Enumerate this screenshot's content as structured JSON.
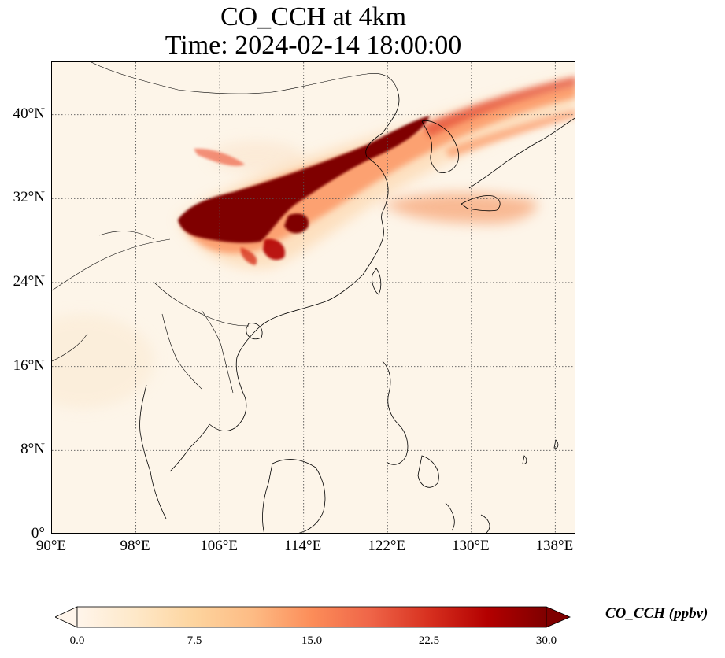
{
  "title": "CO_CCH at 4km",
  "subtitle": "Time: 2024-02-14 18:00:00",
  "map": {
    "projection": "PlateCarree",
    "lon_range": [
      90,
      140
    ],
    "lat_range": [
      0,
      45
    ],
    "gridlines": "dotted",
    "lon_ticks": [
      {
        "value": 90,
        "label": "90°E"
      },
      {
        "value": 98,
        "label": "98°E"
      },
      {
        "value": 106,
        "label": "106°E"
      },
      {
        "value": 114,
        "label": "114°E"
      },
      {
        "value": 122,
        "label": "122°E"
      },
      {
        "value": 130,
        "label": "130°E"
      },
      {
        "value": 138,
        "label": "138°E"
      }
    ],
    "lat_ticks": [
      {
        "value": 0,
        "label": "0°"
      },
      {
        "value": 8,
        "label": "8°N"
      },
      {
        "value": 16,
        "label": "16°N"
      },
      {
        "value": 24,
        "label": "24°N"
      },
      {
        "value": 32,
        "label": "32°N"
      },
      {
        "value": 40,
        "label": "40°N"
      }
    ],
    "field": "CO_CCH",
    "plume_description_colors": {
      "low": "#fff5eb",
      "high": "#7f0000"
    }
  },
  "colorbar": {
    "label": "CO_CCH (ppbv)",
    "min": 0.0,
    "max": 30.0,
    "extend": "both",
    "colormap": "OrRd",
    "stops": [
      "#fff5eb",
      "#fee8c8",
      "#fdd49e",
      "#fdbb84",
      "#fc8d59",
      "#ef6548",
      "#d7301f",
      "#b30000",
      "#7f0000"
    ],
    "ticks": [
      "0.0",
      "7.5",
      "15.0",
      "22.5",
      "30.0"
    ]
  }
}
